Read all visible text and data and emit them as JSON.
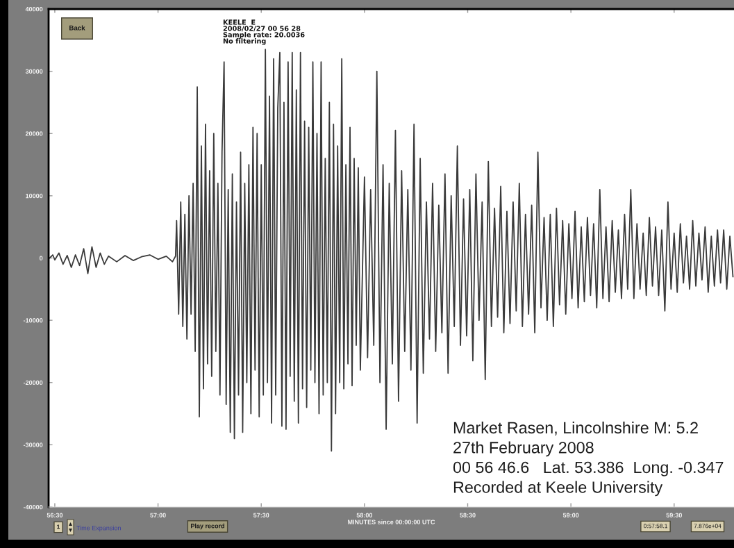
{
  "chart_data": {
    "type": "line",
    "xlabel": "MINUTES since 00:00:00 UTC",
    "x": [
      56.475,
      56.49,
      56.5,
      56.52,
      56.54,
      56.56,
      56.58,
      56.6,
      56.62,
      56.64,
      56.66,
      56.68,
      56.7,
      56.72,
      56.74,
      56.76,
      56.8,
      56.84,
      56.88,
      56.92,
      56.96,
      57.0,
      57.04,
      57.07,
      57.085,
      57.09,
      57.1,
      57.11,
      57.12,
      57.13,
      57.14,
      57.15,
      57.16,
      57.17,
      57.18,
      57.19,
      57.2,
      57.21,
      57.22,
      57.23,
      57.24,
      57.25,
      57.26,
      57.27,
      57.28,
      57.29,
      57.3,
      57.31,
      57.32,
      57.33,
      57.34,
      57.35,
      57.36,
      57.37,
      57.38,
      57.39,
      57.4,
      57.41,
      57.42,
      57.43,
      57.44,
      57.45,
      57.46,
      57.47,
      57.48,
      57.49,
      57.5,
      57.51,
      57.52,
      57.53,
      57.54,
      57.55,
      57.56,
      57.57,
      57.58,
      57.59,
      57.6,
      57.61,
      57.62,
      57.63,
      57.64,
      57.65,
      57.66,
      57.67,
      57.68,
      57.69,
      57.7,
      57.71,
      57.72,
      57.73,
      57.74,
      57.75,
      57.76,
      57.77,
      57.78,
      57.79,
      57.8,
      57.81,
      57.82,
      57.83,
      57.84,
      57.85,
      57.86,
      57.87,
      57.88,
      57.89,
      57.9,
      57.91,
      57.92,
      57.93,
      57.94,
      57.95,
      57.96,
      57.97,
      57.98,
      58.0,
      58.015,
      58.03,
      58.045,
      58.06,
      58.075,
      58.09,
      58.105,
      58.12,
      58.135,
      58.15,
      58.165,
      58.18,
      58.195,
      58.21,
      58.225,
      58.24,
      58.255,
      58.27,
      58.285,
      58.3,
      58.315,
      58.33,
      58.345,
      58.36,
      58.375,
      58.39,
      58.405,
      58.42,
      58.435,
      58.45,
      58.465,
      58.48,
      58.495,
      58.51,
      58.525,
      58.54,
      58.555,
      58.57,
      58.585,
      58.6,
      58.615,
      58.63,
      58.645,
      58.66,
      58.675,
      58.69,
      58.705,
      58.72,
      58.735,
      58.75,
      58.765,
      58.78,
      58.795,
      58.81,
      58.825,
      58.84,
      58.855,
      58.87,
      58.885,
      58.9,
      58.915,
      58.93,
      58.945,
      58.96,
      58.975,
      58.99,
      59.005,
      59.02,
      59.035,
      59.05,
      59.065,
      59.08,
      59.095,
      59.11,
      59.125,
      59.14,
      59.155,
      59.17,
      59.185,
      59.2,
      59.215,
      59.23,
      59.245,
      59.26,
      59.275,
      59.29,
      59.305,
      59.32,
      59.335,
      59.35,
      59.365,
      59.38,
      59.395,
      59.41,
      59.425,
      59.44,
      59.455,
      59.47,
      59.485,
      59.5,
      59.515,
      59.53,
      59.545,
      59.56,
      59.575,
      59.59,
      59.605,
      59.62,
      59.635,
      59.65,
      59.665,
      59.68,
      59.695,
      59.71,
      59.725,
      59.74,
      59.755,
      59.77,
      59.785
    ],
    "series": [
      {
        "color": "#3a3a3a",
        "values": [
          0,
          500,
          -300,
          800,
          -1000,
          400,
          -1500,
          500,
          -1200,
          1500,
          -2500,
          1800,
          -1500,
          800,
          -1000,
          300,
          -600,
          400,
          -400,
          200,
          500,
          -200,
          300,
          -600,
          300,
          6000,
          -9000,
          9000,
          -11000,
          7000,
          -13000,
          10000,
          -9000,
          12000,
          -15000,
          27500,
          -25500,
          18000,
          -21000,
          21500,
          -17000,
          14000,
          -19000,
          20000,
          -15000,
          12000,
          -22000,
          17000,
          31500,
          -23500,
          11000,
          -28000,
          13500,
          -29000,
          9000,
          -22000,
          17000,
          -28000,
          12000,
          -20000,
          15000,
          -25000,
          21000,
          -18000,
          20000,
          -25500,
          15000,
          -22000,
          33500,
          -20000,
          26000,
          -26500,
          32000,
          -22000,
          24000,
          33000,
          -27000,
          25000,
          -27500,
          31500,
          -19000,
          33000,
          -23000,
          27000,
          -26500,
          33000,
          -21000,
          22000,
          -24000,
          21000,
          -18000,
          31500,
          -20000,
          20000,
          -25000,
          31500,
          -22000,
          16000,
          -20000,
          25000,
          -31000,
          21500,
          -25000,
          18000,
          -20000,
          32000,
          -21000,
          15000,
          -17000,
          21000,
          -20500,
          16000,
          -14000,
          14500,
          -18000,
          13000,
          -16000,
          11000,
          -14000,
          30000,
          -20000,
          15000,
          -27500,
          12000,
          -17000,
          20500,
          -23000,
          14000,
          -15000,
          11000,
          -18000,
          21500,
          -26500,
          16000,
          -18500,
          9000,
          -13000,
          12000,
          -15000,
          8500,
          -12000,
          13500,
          -18500,
          10000,
          -11000,
          18000,
          -14000,
          9500,
          -12500,
          11000,
          -16500,
          13500,
          -10000,
          9000,
          -19500,
          15500,
          -11000,
          8000,
          -9500,
          11500,
          -12000,
          7500,
          -10500,
          9000,
          -8500,
          12000,
          -11000,
          7000,
          -9000,
          8500,
          -12000,
          17000,
          -8000,
          6500,
          -10000,
          7000,
          -11000,
          8000,
          -7500,
          6000,
          -9000,
          5500,
          -6500,
          7500,
          -8000,
          5000,
          -7000,
          6500,
          -6000,
          5500,
          -8000,
          11000,
          -6500,
          5000,
          -7000,
          6000,
          -5500,
          4500,
          -6500,
          7000,
          -5000,
          11000,
          -6500,
          5500,
          -5000,
          4000,
          -6000,
          6500,
          -4500,
          5000,
          -6000,
          4500,
          -8500,
          9000,
          -5000,
          4000,
          -5500,
          5500,
          -4000,
          3500,
          -5000,
          6000,
          -4500,
          4000,
          -3500,
          5000,
          -5500,
          3500,
          -4500,
          4500,
          -4000,
          4500,
          -5000,
          3500,
          -3000
        ]
      }
    ],
    "xlim": [
      56.47,
      59.79
    ],
    "ylim": [
      -40000,
      40000
    ],
    "xticks": [
      {
        "value": 56.5,
        "label": "56:30"
      },
      {
        "value": 57.0,
        "label": "57:00"
      },
      {
        "value": 57.5,
        "label": "57:30"
      },
      {
        "value": 58.0,
        "label": "58:00"
      },
      {
        "value": 58.5,
        "label": "58:30"
      },
      {
        "value": 59.0,
        "label": "59:00"
      },
      {
        "value": 59.5,
        "label": "59:30"
      }
    ],
    "yticks": [
      -40000,
      -30000,
      -20000,
      -10000,
      0,
      10000,
      20000,
      30000,
      40000
    ],
    "line_style": "solid",
    "annotations": [
      "KEELE  E\n2008/02/27 00 56 28\nSample rate: 20.0036\nNo filtering",
      "Market Rasen, Lincolnshire M: 5.2\n27th February 2008\n00 56 46.6   Lat. 53.386  Long. -0.347\nRecorded at Keele University",
      "Back",
      "1",
      "Time Expansion",
      "Play record",
      "0:57:58.1",
      "7.876e+04"
    ]
  }
}
